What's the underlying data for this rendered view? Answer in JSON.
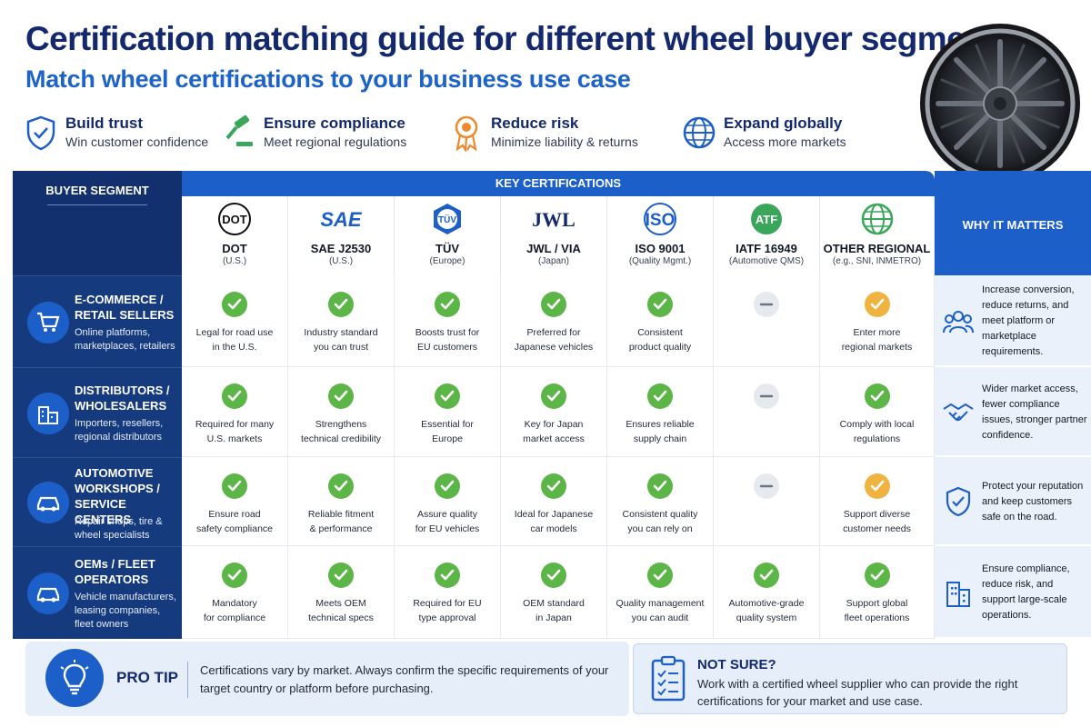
{
  "header": {
    "title": "Certification matching guide for different wheel buyer segments",
    "subtitle": "Match wheel certifications to your business use case"
  },
  "benefits": [
    {
      "icon": "shield-check-icon",
      "title": "Build trust",
      "desc": "Win customer confidence"
    },
    {
      "icon": "gavel-icon",
      "title": "Ensure compliance",
      "desc": "Meet regional regulations"
    },
    {
      "icon": "award-ribbon-icon",
      "title": "Reduce risk",
      "desc": "Minimize liability & returns"
    },
    {
      "icon": "globe-icon",
      "title": "Expand globally",
      "desc": "Access more markets"
    }
  ],
  "table": {
    "segment_header": "BUYER SEGMENT",
    "cert_header": "KEY CERTIFICATIONS",
    "why_header": "WHY IT MATTERS",
    "certifications": [
      {
        "logo": "DOT",
        "name": "DOT",
        "region": "(U.S.)"
      },
      {
        "logo": "SAE",
        "name": "SAE J2530",
        "region": "(U.S.)"
      },
      {
        "logo": "TÜV",
        "name": "TÜV",
        "region": "(Europe)"
      },
      {
        "logo": "JWL",
        "name": "JWL / VIA",
        "region": "(Japan)"
      },
      {
        "logo": "ISO",
        "name": "ISO 9001",
        "region": "(Quality Mgmt.)"
      },
      {
        "logo": "ATF",
        "name": "IATF 16949",
        "region": "(Automotive QMS)"
      },
      {
        "logo": "globe",
        "name": "OTHER REGIONAL",
        "region": "(e.g., SNI, INMETRO)"
      }
    ],
    "rows": [
      {
        "icon": "shopping-cart-icon",
        "title_lines": [
          "E-COMMERCE /",
          "RETAIL SELLERS"
        ],
        "desc_lines": [
          "Online platforms,",
          "marketplaces, retailers"
        ],
        "cells": [
          {
            "status": "yes",
            "lines": [
              "Legal for road use",
              "in the U.S."
            ]
          },
          {
            "status": "yes",
            "lines": [
              "Industry standard",
              "you can trust"
            ]
          },
          {
            "status": "yes",
            "lines": [
              "Boosts trust for",
              "EU customers"
            ]
          },
          {
            "status": "yes",
            "lines": [
              "Preferred for",
              "Japanese vehicles"
            ]
          },
          {
            "status": "yes",
            "lines": [
              "Consistent",
              "product quality"
            ]
          },
          {
            "status": "none",
            "lines": []
          },
          {
            "status": "partial",
            "lines": [
              "Enter more",
              "regional markets"
            ]
          }
        ],
        "why_icon": "people-icon",
        "why": "Increase conversion, reduce returns, and meet platform or marketplace requirements."
      },
      {
        "icon": "buildings-icon",
        "title_lines": [
          "DISTRIBUTORS /",
          "WHOLESALERS"
        ],
        "desc_lines": [
          "Importers, resellers,",
          "regional distributors"
        ],
        "cells": [
          {
            "status": "yes",
            "lines": [
              "Required for many",
              "U.S. markets"
            ]
          },
          {
            "status": "yes",
            "lines": [
              "Strengthens",
              "technical credibility"
            ]
          },
          {
            "status": "yes",
            "lines": [
              "Essential for",
              "Europe"
            ]
          },
          {
            "status": "yes",
            "lines": [
              "Key for Japan",
              "market access"
            ]
          },
          {
            "status": "yes",
            "lines": [
              "Ensures reliable",
              "supply chain"
            ]
          },
          {
            "status": "none",
            "lines": []
          },
          {
            "status": "yes",
            "lines": [
              "Comply with local",
              "regulations"
            ]
          }
        ],
        "why_icon": "handshake-icon",
        "why": "Wider market access, fewer compliance issues, stronger partner confidence."
      },
      {
        "icon": "car-icon",
        "title_lines": [
          "AUTOMOTIVE",
          "WORKSHOPS /",
          "SERVICE CENTERS"
        ],
        "desc_lines": [
          "Repair shops, tire &",
          "wheel specialists"
        ],
        "cells": [
          {
            "status": "yes",
            "lines": [
              "Ensure road",
              "safety compliance"
            ]
          },
          {
            "status": "yes",
            "lines": [
              "Reliable fitment",
              "& performance"
            ]
          },
          {
            "status": "yes",
            "lines": [
              "Assure quality",
              "for EU vehicles"
            ]
          },
          {
            "status": "yes",
            "lines": [
              "Ideal for Japanese",
              "car models"
            ]
          },
          {
            "status": "yes",
            "lines": [
              "Consistent quality",
              "you can rely on"
            ]
          },
          {
            "status": "none",
            "lines": []
          },
          {
            "status": "partial",
            "lines": [
              "Support diverse",
              "customer needs"
            ]
          }
        ],
        "why_icon": "shield-check-icon",
        "why": "Protect your reputation and keep customers safe on the road."
      },
      {
        "icon": "car-icon",
        "title_lines": [
          "OEMs / FLEET",
          "OPERATORS"
        ],
        "desc_lines": [
          "Vehicle manufacturers,",
          "leasing companies,",
          "fleet owners"
        ],
        "cells": [
          {
            "status": "yes",
            "lines": [
              "Mandatory",
              "for compliance"
            ]
          },
          {
            "status": "yes",
            "lines": [
              "Meets OEM",
              "technical specs"
            ]
          },
          {
            "status": "yes",
            "lines": [
              "Required for EU",
              "type approval"
            ]
          },
          {
            "status": "yes",
            "lines": [
              "OEM standard",
              "in Japan"
            ]
          },
          {
            "status": "yes",
            "lines": [
              "Quality management",
              "you can audit"
            ]
          },
          {
            "status": "yes",
            "lines": [
              "Automotive-grade",
              "quality system"
            ]
          },
          {
            "status": "yes",
            "lines": [
              "Support global",
              "fleet operations"
            ]
          }
        ],
        "why_icon": "buildings-icon",
        "why": "Ensure compliance, reduce risk, and support large-scale operations."
      }
    ]
  },
  "pro_tip": {
    "label": "PRO TIP",
    "text": "Certifications vary by market. Always confirm the specific requirements of your target country or platform before purchasing."
  },
  "not_sure": {
    "title": "NOT SURE?",
    "text": "Work with a certified wheel supplier who can provide the right certifications for your market and use case."
  },
  "colors": {
    "navy": "#14286d",
    "blue": "#1d5fc8",
    "green": "#5cb547",
    "amber": "#f0b340"
  }
}
